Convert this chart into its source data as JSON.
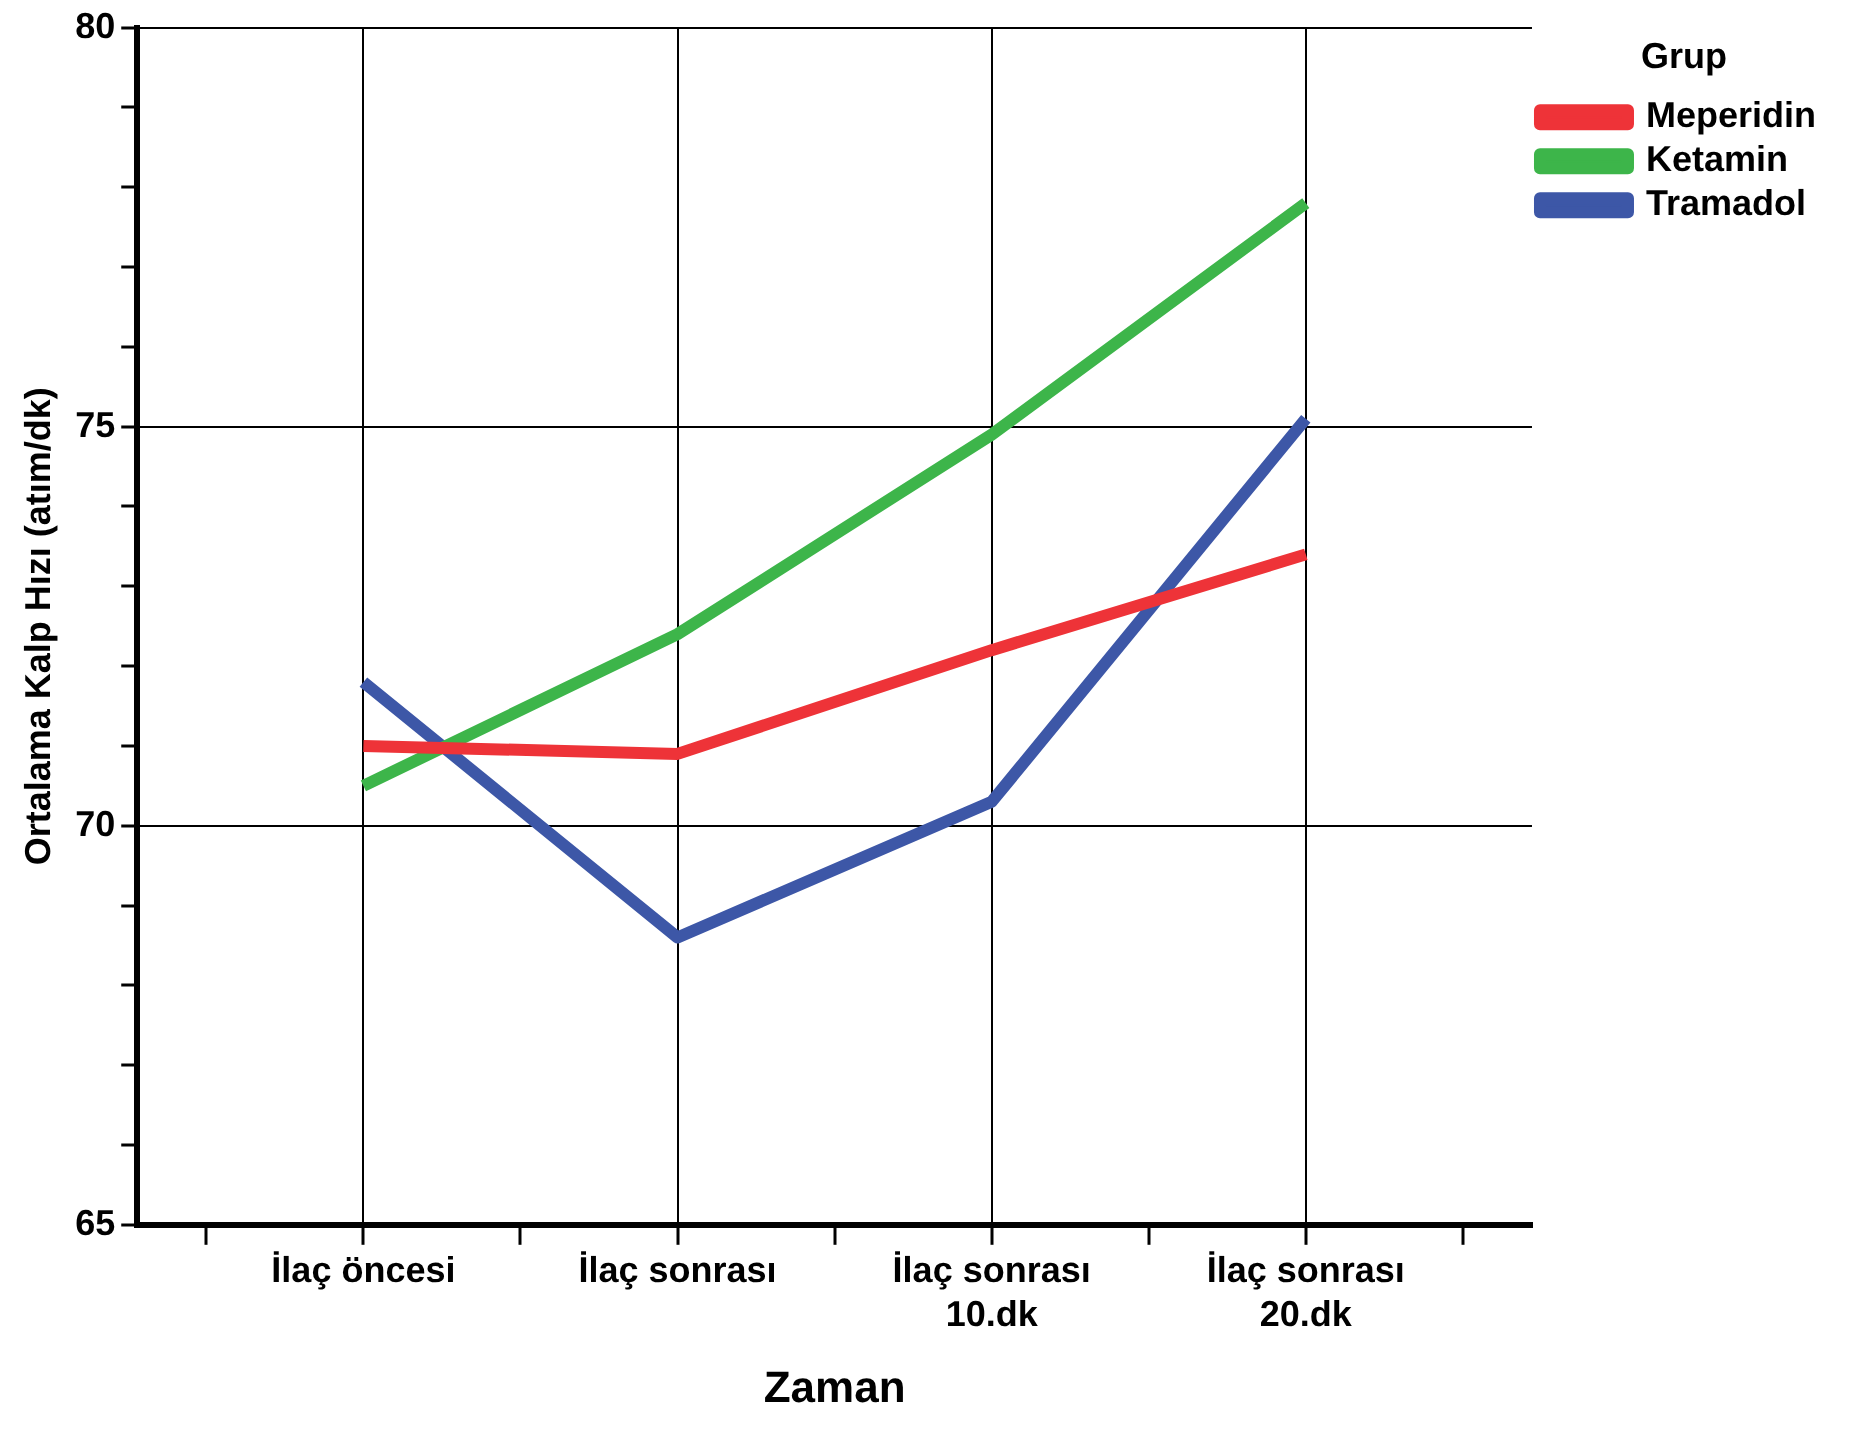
{
  "chart_data": {
    "type": "line",
    "xlabel": "Zaman",
    "ylabel": "Ortalama Kalp Hızı (atım/dk)",
    "legend_title": "Grup",
    "legend": "top right",
    "grid": true,
    "marker": "none",
    "line_style": "solid",
    "categories": [
      "İlaç öncesi",
      "İlaç sonrası",
      "İlaç sonrası 10.dk",
      "İlaç sonrası 20.dk"
    ],
    "ylim": [
      65,
      80
    ],
    "yticks": [
      65,
      {
        "value": 66,
        "label": null
      },
      {
        "value": 67,
        "label": null
      },
      {
        "value": 68,
        "label": null
      },
      {
        "value": 69,
        "label": null
      },
      70,
      {
        "value": 71,
        "label": null
      },
      {
        "value": 72,
        "label": null
      },
      {
        "value": 73,
        "label": null
      },
      {
        "value": 74,
        "label": null
      },
      75,
      {
        "value": 76,
        "label": null
      },
      {
        "value": 77,
        "label": null
      },
      {
        "value": 78,
        "label": null
      },
      {
        "value": 79,
        "label": null
      },
      80
    ],
    "series": [
      {
        "name": "Meperidin",
        "color": "#ee3338",
        "values": [
          71.0,
          70.9,
          72.2,
          73.4
        ]
      },
      {
        "name": "Ketamin",
        "color": "#3db54a",
        "values": [
          70.5,
          72.4,
          74.9,
          77.8
        ]
      },
      {
        "name": "Tramadol",
        "color": "#3d57a7",
        "values": [
          71.8,
          68.6,
          70.3,
          75.1
        ]
      }
    ]
  }
}
